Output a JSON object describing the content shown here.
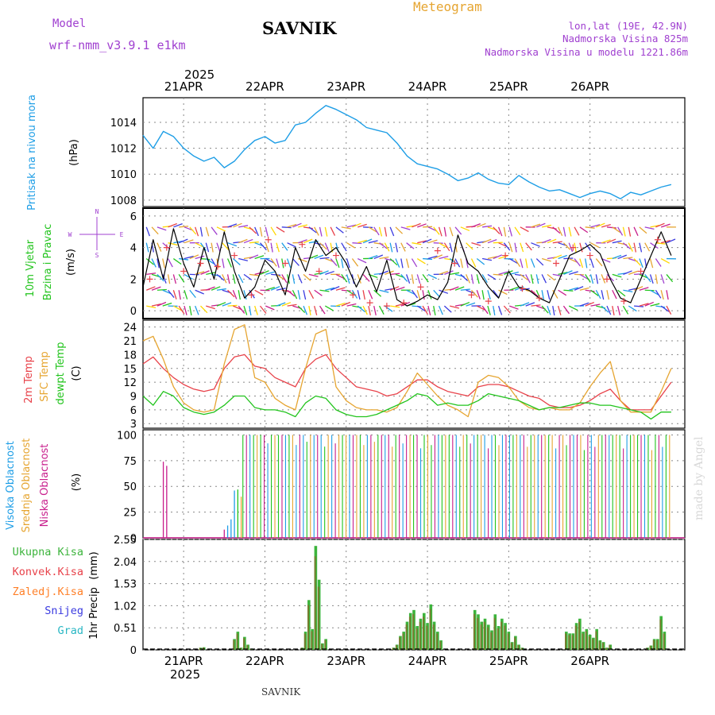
{
  "header": {
    "model_label": "Model",
    "model_name": "wrf-nmm_v3.9.1 e1km",
    "station": "SAVNIK",
    "product": "Meteogram",
    "lonlat": "lon,lat (19E, 42.9N)",
    "elevation": "Nadmorska Visina 825m",
    "model_elevation": "Nadmorska Visina u modelu 1221.86m",
    "footer_station": "SAVNIK",
    "watermark": "made by Angel",
    "year": "2025"
  },
  "colors": {
    "pressure": "#1e9ee6",
    "temp2m": "#e8424a",
    "sfc": "#e6a531",
    "dewpt": "#22c41d",
    "high_cloud": "#1e9ee6",
    "mid_cloud": "#e6a531",
    "low_cloud": "#c81e8c",
    "total_precip": "#3cb43c",
    "conv_precip": "#e8424a",
    "strat_precip": "#ff7f27",
    "snow": "#3a3ae0",
    "graupel": "#2ab7c4",
    "purple_text": "#a040d0",
    "gold_text": "#e6a531"
  },
  "chart_data": [
    {
      "type": "line",
      "panel": "pressure",
      "ylabels": [
        "Pritisak na nivou mora",
        "(hPa)"
      ],
      "ylim": [
        1007.5,
        1015.9
      ],
      "yticks": [
        1008,
        1010,
        1012,
        1014
      ],
      "x_hours": [
        0,
        3,
        6,
        9,
        12,
        15,
        18,
        21,
        24,
        27,
        30,
        33,
        36,
        39,
        42,
        45,
        48,
        51,
        54,
        57,
        60,
        63,
        66,
        69,
        72,
        75,
        78,
        81,
        84,
        87,
        90,
        93,
        96,
        99,
        102,
        105,
        108,
        111,
        114,
        117,
        120,
        123,
        126,
        129,
        132,
        135,
        138,
        141,
        144,
        147,
        150,
        153,
        156
      ],
      "values": [
        1013.0,
        1012.0,
        1013.3,
        1012.9,
        1012.0,
        1011.4,
        1011.0,
        1011.3,
        1010.5,
        1011.0,
        1011.9,
        1012.6,
        1012.9,
        1012.4,
        1012.6,
        1013.8,
        1014.0,
        1014.7,
        1015.3,
        1015.0,
        1014.6,
        1014.2,
        1013.6,
        1013.4,
        1013.2,
        1012.4,
        1011.4,
        1010.8,
        1010.6,
        1010.4,
        1010.0,
        1009.5,
        1009.7,
        1010.1,
        1009.6,
        1009.3,
        1009.2,
        1009.9,
        1009.4,
        1009.0,
        1008.7,
        1008.8,
        1008.5,
        1008.2,
        1008.5,
        1008.7,
        1008.5,
        1008.1,
        1008.6,
        1008.4,
        1008.7,
        1009.0,
        1009.2
      ]
    },
    {
      "type": "line",
      "panel": "wind",
      "ylabels": [
        "10m Vjetar",
        "Brzina i Pravac",
        "(m/s)"
      ],
      "compass": [
        "N",
        "E",
        "S",
        "W"
      ],
      "ylim": [
        -0.5,
        6.5
      ],
      "yticks": [
        0,
        2,
        4,
        6
      ],
      "x_hours": [
        0,
        3,
        6,
        9,
        12,
        15,
        18,
        21,
        24,
        27,
        30,
        33,
        36,
        39,
        42,
        45,
        48,
        51,
        54,
        57,
        60,
        63,
        66,
        69,
        72,
        75,
        78,
        81,
        84,
        87,
        90,
        93,
        96,
        99,
        102,
        105,
        108,
        111,
        114,
        117,
        120,
        123,
        126,
        129,
        132,
        135,
        138,
        141,
        144,
        147,
        150,
        153,
        156
      ],
      "values": [
        1.5,
        4.5,
        2.0,
        5.2,
        3.0,
        1.5,
        4.0,
        2.0,
        5.0,
        2.5,
        0.8,
        1.5,
        3.2,
        2.5,
        1.0,
        4.0,
        2.5,
        4.5,
        3.5,
        4.0,
        3.0,
        1.5,
        2.8,
        1.2,
        3.2,
        0.7,
        0.3,
        0.6,
        1.0,
        0.7,
        1.8,
        4.8,
        3.0,
        2.5,
        1.5,
        0.8,
        2.5,
        1.5,
        1.3,
        0.8,
        0.5,
        2.0,
        3.5,
        3.8,
        4.2,
        3.6,
        2.0,
        0.8,
        0.5,
        2.0,
        3.5,
        5.0,
        3.5
      ],
      "gust_marks": [
        2.0,
        4.0,
        2.5,
        3.0,
        2.8,
        3.5,
        1.0,
        4.5,
        3.0,
        4.2,
        2.5,
        3.5,
        1.0,
        0.5,
        0.3,
        0.5,
        1.5,
        3.8,
        3.0,
        1.0,
        0.6,
        3.5,
        1.4,
        0.8,
        3.0,
        4.0,
        3.5,
        2.0,
        0.6,
        2.5,
        4.5
      ]
    },
    {
      "type": "line",
      "panel": "temperature",
      "ylabels": [
        "2m Temp",
        "SFC Temp",
        "dewpt Temp",
        "(C)"
      ],
      "ylim": [
        2.0,
        25.5
      ],
      "yticks": [
        3,
        6,
        9,
        12,
        15,
        18,
        21,
        24
      ],
      "x_hours": [
        0,
        3,
        6,
        9,
        12,
        15,
        18,
        21,
        24,
        27,
        30,
        33,
        36,
        39,
        42,
        45,
        48,
        51,
        54,
        57,
        60,
        63,
        66,
        69,
        72,
        75,
        78,
        81,
        84,
        87,
        90,
        93,
        96,
        99,
        102,
        105,
        108,
        111,
        114,
        117,
        120,
        123,
        126,
        129,
        132,
        135,
        138,
        141,
        144,
        147,
        150,
        153,
        156
      ],
      "series": [
        {
          "name": "2m Temp",
          "values": [
            16.0,
            17.5,
            15.0,
            13.0,
            11.5,
            10.5,
            10.0,
            10.5,
            15.0,
            17.5,
            18.0,
            15.5,
            15.0,
            13.0,
            12.0,
            11.0,
            15.0,
            17.0,
            18.0,
            15.0,
            13.0,
            11.0,
            10.5,
            10.0,
            9.0,
            9.5,
            11.0,
            12.5,
            12.5,
            11.0,
            10.0,
            9.5,
            9.0,
            11.0,
            11.5,
            11.5,
            11.0,
            10.0,
            9.0,
            8.5,
            7.0,
            6.5,
            6.5,
            7.0,
            8.0,
            9.5,
            10.5,
            8.0,
            6.0,
            6.0,
            6.0,
            9.0,
            12.0
          ]
        },
        {
          "name": "SFC Temp",
          "values": [
            21.0,
            22.0,
            17.0,
            11.0,
            7.5,
            6.0,
            5.5,
            6.0,
            16.0,
            23.5,
            24.5,
            13.0,
            12.0,
            8.5,
            7.0,
            6.0,
            15.0,
            22.5,
            23.5,
            11.0,
            8.0,
            6.5,
            6.0,
            6.0,
            5.5,
            6.5,
            10.0,
            14.0,
            11.5,
            9.0,
            7.0,
            6.0,
            4.5,
            12.0,
            13.5,
            13.0,
            11.0,
            8.0,
            6.5,
            6.0,
            6.5,
            6.0,
            6.0,
            7.5,
            11.0,
            14.0,
            16.5,
            8.0,
            5.5,
            5.5,
            5.5,
            10.0,
            15.0
          ]
        },
        {
          "name": "dewpt Temp",
          "values": [
            9.0,
            7.0,
            10.0,
            9.0,
            6.5,
            5.5,
            5.0,
            5.5,
            7.0,
            9.0,
            9.0,
            6.5,
            6.0,
            6.0,
            5.5,
            4.5,
            7.5,
            9.0,
            8.5,
            6.0,
            5.0,
            4.5,
            4.5,
            5.0,
            6.0,
            7.0,
            8.0,
            9.5,
            9.0,
            7.0,
            7.5,
            7.0,
            7.0,
            8.0,
            9.5,
            9.0,
            8.5,
            8.0,
            7.0,
            6.0,
            6.5,
            6.5,
            7.0,
            7.5,
            7.5,
            7.0,
            7.0,
            6.5,
            6.0,
            5.5,
            4.0,
            5.5,
            5.5
          ]
        }
      ]
    },
    {
      "type": "bar",
      "panel": "clouds",
      "ylabels": [
        "Visoka Oblacnost",
        "Srednja Oblacnost",
        "Niska Oblacnost",
        "(%)"
      ],
      "ylim": [
        0,
        105
      ],
      "yticks": [
        0,
        25,
        50,
        75,
        100
      ],
      "cloud_pattern": "sparse low cloud ~70% at 21APR 06z, ~45% mixed cloud late 21APR, near-continuous 100% high/mid cloud 22APR-26APR with low cloud 100% spikes from 25APR"
    },
    {
      "type": "bar",
      "panel": "precip",
      "ylabels": [
        "1hr Precip",
        "(mm)"
      ],
      "legend": [
        "Ukupna Kisa",
        "Konvek.Kisa",
        "Zaledj.Kisa",
        "Snijeg",
        "Grad"
      ],
      "ylim": [
        0,
        2.55
      ],
      "yticks": [
        0,
        0.51,
        1.02,
        1.53,
        2.04,
        2.55
      ],
      "x_hours": [
        17,
        18,
        27,
        28,
        29,
        30,
        31,
        32,
        47,
        48,
        49,
        50,
        51,
        52,
        53,
        54,
        74,
        75,
        76,
        77,
        78,
        79,
        80,
        81,
        82,
        83,
        84,
        85,
        86,
        87,
        88,
        98,
        99,
        100,
        101,
        102,
        103,
        104,
        105,
        106,
        107,
        108,
        109,
        110,
        111,
        112,
        125,
        126,
        127,
        128,
        129,
        130,
        131,
        132,
        133,
        134,
        135,
        136,
        137,
        138,
        149,
        150,
        151,
        152,
        153,
        154
      ],
      "values": [
        0.05,
        0.06,
        0.25,
        0.42,
        0.05,
        0.3,
        0.12,
        0.03,
        0.05,
        0.42,
        1.15,
        0.48,
        2.4,
        1.62,
        0.15,
        0.25,
        0.05,
        0.12,
        0.32,
        0.42,
        0.65,
        0.85,
        0.92,
        0.55,
        0.72,
        0.85,
        0.62,
        1.05,
        0.65,
        0.42,
        0.22,
        0.92,
        0.82,
        0.65,
        0.72,
        0.58,
        0.45,
        0.82,
        0.55,
        0.72,
        0.62,
        0.42,
        0.18,
        0.32,
        0.12,
        0.05,
        0.42,
        0.38,
        0.38,
        0.62,
        0.72,
        0.42,
        0.48,
        0.35,
        0.28,
        0.48,
        0.22,
        0.18,
        0.05,
        0.12,
        0.05,
        0.1,
        0.25,
        0.25,
        0.78,
        0.42
      ]
    }
  ],
  "x_axis": {
    "labels": [
      "21APR",
      "22APR",
      "23APR",
      "24APR",
      "25APR",
      "26APR"
    ],
    "label_hours": [
      12,
      36,
      60,
      84,
      108,
      132
    ],
    "range_hours": [
      0,
      160
    ]
  }
}
